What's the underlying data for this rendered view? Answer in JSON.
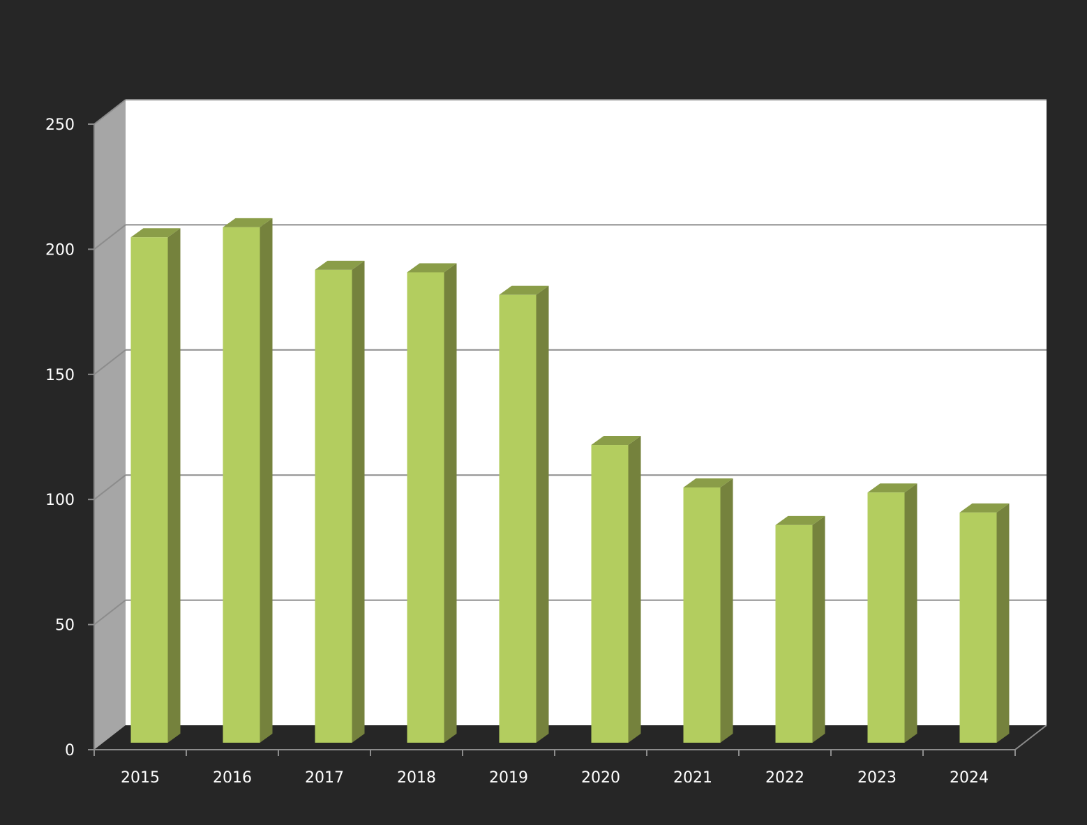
{
  "chart_data": {
    "type": "bar",
    "style": "3d-column",
    "categories": [
      "2015",
      "2016",
      "2017",
      "2018",
      "2019",
      "2020",
      "2021",
      "2022",
      "2023",
      "2024"
    ],
    "values": [
      202,
      206,
      189,
      188,
      179,
      119,
      102,
      87,
      100,
      92
    ],
    "title": "",
    "xlabel": "",
    "ylabel": "",
    "ylim": [
      0,
      250
    ],
    "yticks": [
      0,
      50,
      100,
      150,
      200,
      250
    ],
    "grid": true,
    "legend": "none",
    "colors": {
      "background": "#262626",
      "plot_area": "#ffffff",
      "side_wall": "#a6a6a6",
      "floor": "#262626",
      "gridline": "#8c8c8c",
      "bar_front": "#b3cd5f",
      "bar_side": "#75823d",
      "bar_top": "#8a9d48",
      "label_text": "#ffffff"
    }
  }
}
